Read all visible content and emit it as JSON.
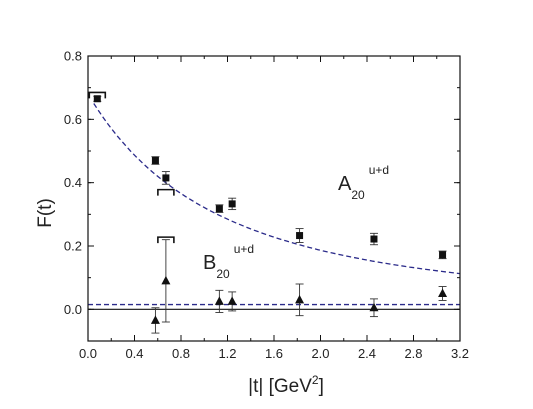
{
  "chart_data": {
    "type": "scatter",
    "xlabel": {
      "main": "|t| [GeV",
      "sup": "2",
      "end": "]"
    },
    "ylabel": "F(t)",
    "xlim": [
      0.0,
      3.2
    ],
    "ylim": [
      -0.1,
      0.8
    ],
    "x_ticks": [
      "0.0",
      "0.4",
      "0.8",
      "1.2",
      "1.6",
      "2.0",
      "2.4",
      "2.8",
      "3.2"
    ],
    "y_ticks": [
      "0.0",
      "0.2",
      "0.4",
      "0.6",
      "0.8"
    ],
    "series": [
      {
        "name": {
          "base": "A",
          "sub": "20",
          "sup": "u+d"
        },
        "marker": "square",
        "points": [
          {
            "x": 0.08,
            "y": 0.665,
            "err": 0.008
          },
          {
            "x": 0.58,
            "y": 0.47,
            "err": 0.012
          },
          {
            "x": 0.67,
            "y": 0.415,
            "err": 0.02
          },
          {
            "x": 1.13,
            "y": 0.318,
            "err": 0.012
          },
          {
            "x": 1.24,
            "y": 0.333,
            "err": 0.018
          },
          {
            "x": 1.82,
            "y": 0.233,
            "err": 0.022
          },
          {
            "x": 2.46,
            "y": 0.222,
            "err": 0.018
          },
          {
            "x": 3.05,
            "y": 0.172,
            "err": 0.012
          }
        ],
        "fit": {
          "style": "dashed",
          "color": "#2b2b8a",
          "dipole_A0": 0.68,
          "mass2": 2.2
        },
        "systematic_brackets": [
          {
            "x": 0.08,
            "y": 0.685
          },
          {
            "x": 0.67,
            "y": 0.378
          }
        ]
      },
      {
        "name": {
          "base": "B",
          "sub": "20",
          "sup": "u+d"
        },
        "marker": "triangle",
        "points": [
          {
            "x": 0.58,
            "y": -0.035,
            "err": 0.04
          },
          {
            "x": 0.67,
            "y": 0.09,
            "err": 0.13
          },
          {
            "x": 1.13,
            "y": 0.025,
            "err": 0.035
          },
          {
            "x": 1.24,
            "y": 0.025,
            "err": 0.03
          },
          {
            "x": 1.82,
            "y": 0.03,
            "err": 0.05
          },
          {
            "x": 2.46,
            "y": 0.005,
            "err": 0.028
          },
          {
            "x": 3.05,
            "y": 0.05,
            "err": 0.022
          }
        ],
        "fit": {
          "style": "dashed",
          "color": "#2b2b8a",
          "constant": 0.015
        },
        "systematic_brackets": [
          {
            "x": 0.67,
            "y": 0.228
          }
        ]
      }
    ],
    "zero_line": true,
    "grid": false
  }
}
